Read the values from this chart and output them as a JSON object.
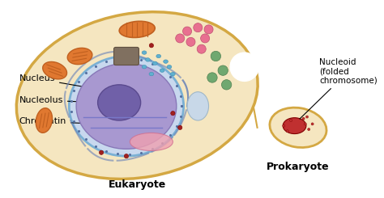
{
  "background_color": "#ffffff",
  "eukaryote_label": "Eukaryote",
  "prokaryote_label": "Prokaryote",
  "nucleus_label": "Nucleus",
  "nucleolus_label": "Nucleolus",
  "chromatin_label": "Chromatin",
  "nucleoid_label": "Nucleoid\n(folded\nchromosome)",
  "cell_outer_color": "#d4a843",
  "cell_inner_color": "#f5e6c0",
  "nucleus_membrane_color": "#7ab0d4",
  "nucleus_inner_color": "#9b8cc4",
  "nucleolus_color": "#6a5a9e",
  "mitochondria_color": "#e07830",
  "pink_dots_color": "#e87090",
  "green_dots_color": "#70a870",
  "blue_dots_color": "#60b0d0",
  "dark_red_dots_color": "#a02020",
  "prokaryote_outer_color": "#d4a843",
  "prokaryote_inner_color": "#f5e6c0",
  "nucleoid_color": "#c03030",
  "label_fontsize": 8,
  "cell_label_fontsize": 9
}
